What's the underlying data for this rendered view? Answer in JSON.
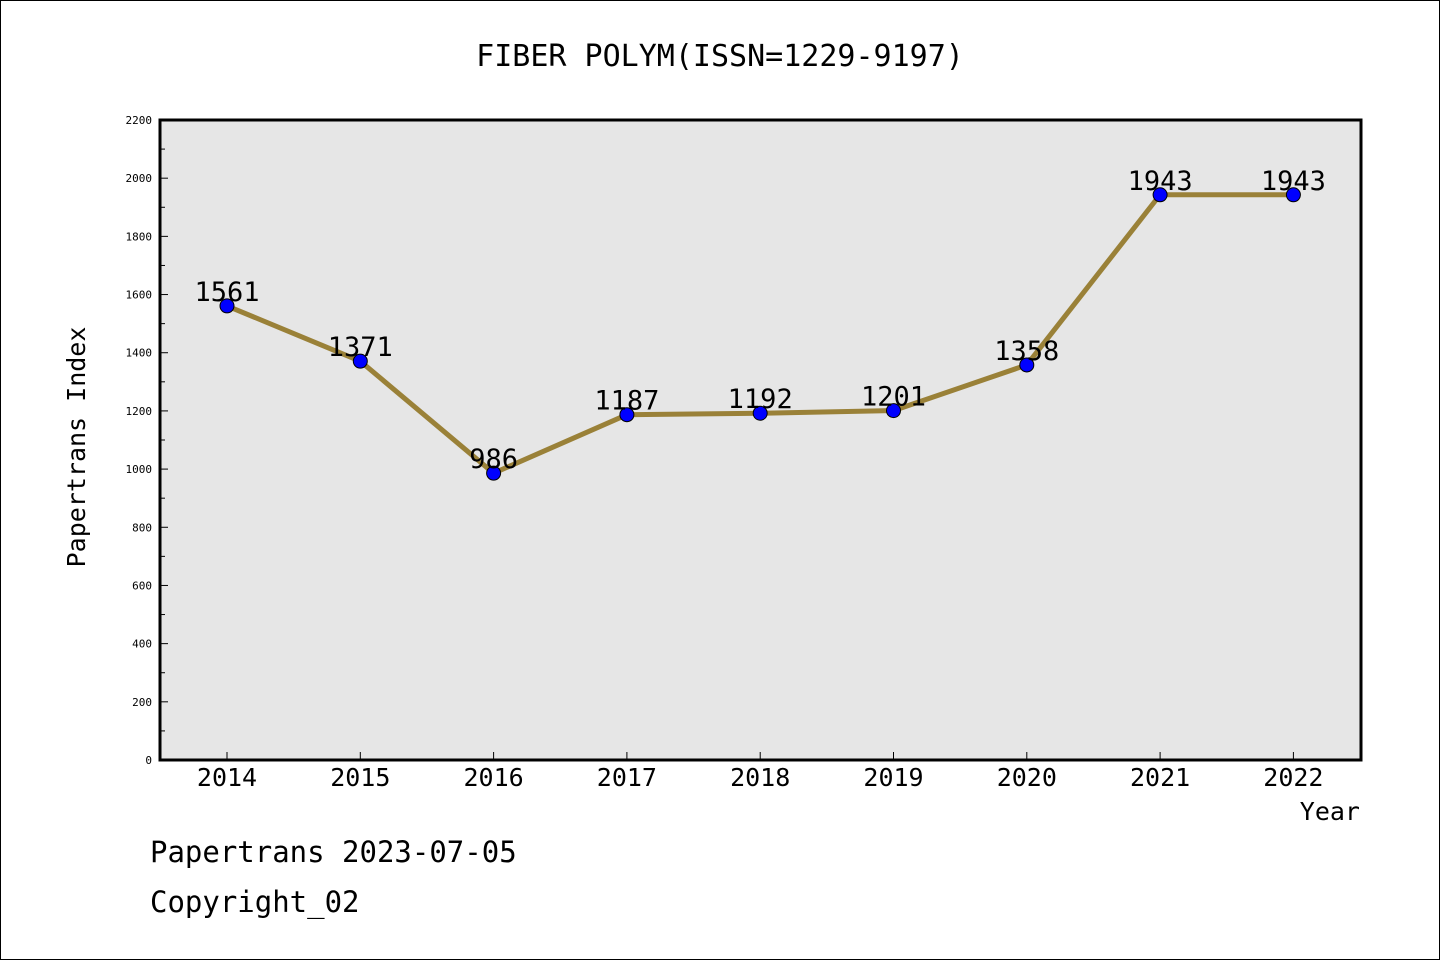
{
  "chart_data": {
    "type": "line",
    "title": "FIBER POLYM(ISSN=1229-9197)",
    "xlabel": "Year",
    "ylabel": "Papertrans Index",
    "categories": [
      "2014",
      "2015",
      "2016",
      "2017",
      "2018",
      "2019",
      "2020",
      "2021",
      "2022"
    ],
    "values": [
      1561,
      1371,
      986,
      1187,
      1192,
      1201,
      1358,
      1943,
      1943
    ],
    "data_labels": [
      "1561",
      "1371",
      "986",
      "1187",
      "1192",
      "1201",
      "1358",
      "1943",
      "1943"
    ],
    "ylim": [
      0,
      2200
    ],
    "yticks": [
      0,
      200,
      400,
      600,
      800,
      1000,
      1200,
      1400,
      1600,
      1800,
      2000,
      2200
    ],
    "grid": false,
    "line_color": "#9a8138",
    "marker_color": "#0000ff",
    "plot_background": "#e6e6e6"
  },
  "footer": {
    "date_line": "Papertrans 2023-07-05",
    "copyright_line": "Copyright_02"
  }
}
